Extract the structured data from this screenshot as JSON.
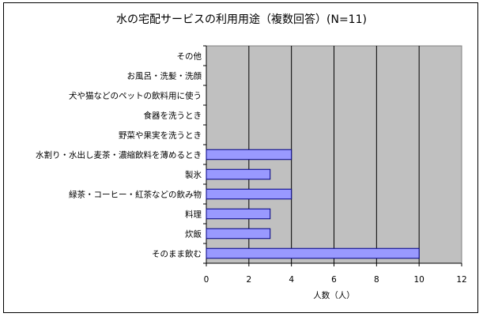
{
  "chart_data": {
    "type": "bar",
    "orientation": "horizontal",
    "title": "水の宅配サービスの利用用途（複数回答）(N=11)",
    "xlabel": "人数（人）",
    "ylabel": "",
    "categories": [
      "その他",
      "お風呂・洗髪・洗顔",
      "犬や猫などのペットの飲料用に使う",
      "食器を洗うとき",
      "野菜や果実を洗うとき",
      "水割り・水出し麦茶・濃縮飲料を薄めるとき",
      "製氷",
      "緑茶・コーヒー・紅茶などの飲み物",
      "料理",
      "炊飯",
      "そのまま飲む"
    ],
    "values": [
      0,
      0,
      0,
      0,
      0,
      4,
      3,
      4,
      3,
      3,
      10
    ],
    "xlim": [
      0,
      12
    ],
    "xticks": [
      "0",
      "2",
      "4",
      "6",
      "8",
      "10",
      "12"
    ],
    "grid": "vertical",
    "legend": "none",
    "colors": {
      "plot_background": "#c0c0c0",
      "bar_fill": "#9999ff",
      "bar_stroke": "#000080",
      "gridline": "#000000"
    }
  }
}
